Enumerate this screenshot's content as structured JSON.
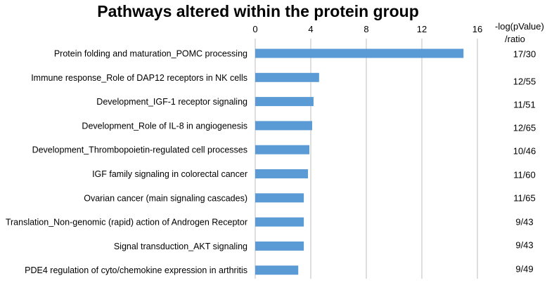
{
  "chart_data": {
    "type": "bar",
    "orientation": "horizontal",
    "title": "Pathways altered within the protein group",
    "xlim": [
      0,
      16
    ],
    "xticks": [
      0,
      4,
      8,
      12,
      16
    ],
    "grid": true,
    "bar_color": "#5b9bd5",
    "categories": [
      "Protein folding and maturation_POMC processing",
      "Immune response_Role of DAP12 receptors in NK cells",
      "Development_IGF-1 receptor signaling",
      "Development_Role of IL-8 in angiogenesis",
      "Development_Thrombopoietin-regulated cell processes",
      "IGF family signaling in colorectal cancer",
      "Ovarian cancer (main signaling cascades)",
      "Translation_Non-genomic (rapid) action of Androgen Receptor",
      "Signal transduction_AKT signaling",
      "PDE4 regulation of cyto/chemokine expression in arthritis"
    ],
    "values": [
      15.0,
      4.6,
      4.2,
      4.1,
      3.9,
      3.8,
      3.5,
      3.5,
      3.5,
      3.1
    ],
    "ratio_header": [
      "-log(pValue)",
      "/ratio"
    ],
    "ratios": [
      "17/30",
      "12/55",
      "11/51",
      "12/65",
      "10/46",
      "11/60",
      "11/65",
      "9/43",
      "9/43",
      "9/49"
    ]
  }
}
